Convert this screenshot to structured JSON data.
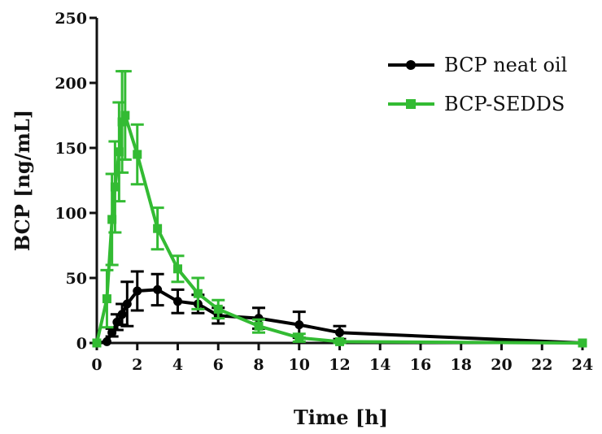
{
  "chart_data": {
    "type": "line",
    "title": "",
    "xlabel": "Time [h]",
    "ylabel": "BCP [ng/mL]",
    "xlim": [
      0,
      24
    ],
    "ylim": [
      0,
      250
    ],
    "x_ticks": [
      "0",
      "2",
      "4",
      "6",
      "8",
      "10",
      "12",
      "14",
      "16",
      "18",
      "20",
      "22",
      "24"
    ],
    "y_ticks": [
      "0",
      "50",
      "100",
      "150",
      "200",
      "250"
    ],
    "grid": false,
    "legend_position": "top-right",
    "series": [
      {
        "name": "BCP neat oil",
        "color": "#000000",
        "marker": "circle",
        "x": [
          0,
          0.5,
          0.75,
          1,
          1.25,
          1.5,
          2,
          3,
          4,
          5,
          6,
          8,
          10,
          12,
          24
        ],
        "values": [
          0,
          1,
          8,
          16,
          22,
          30,
          40,
          41,
          32,
          30,
          21,
          19,
          14,
          8,
          0
        ],
        "error": [
          0,
          0,
          3,
          6,
          8,
          17,
          15,
          12,
          9,
          7,
          6,
          8,
          10,
          5,
          0
        ]
      },
      {
        "name": "BCP-SEDDS",
        "color": "#33bb33",
        "marker": "square",
        "x": [
          0,
          0.5,
          0.75,
          0.9,
          1.1,
          1.25,
          1.4,
          2,
          3,
          4,
          5,
          6,
          8,
          10,
          12,
          24
        ],
        "values": [
          0,
          34,
          95,
          120,
          147,
          170,
          175,
          145,
          88,
          57,
          38,
          26,
          13,
          4,
          1,
          0
        ],
        "error": [
          0,
          22,
          35,
          35,
          38,
          39,
          34,
          23,
          16,
          10,
          12,
          7,
          5,
          3,
          1,
          0
        ]
      }
    ]
  }
}
